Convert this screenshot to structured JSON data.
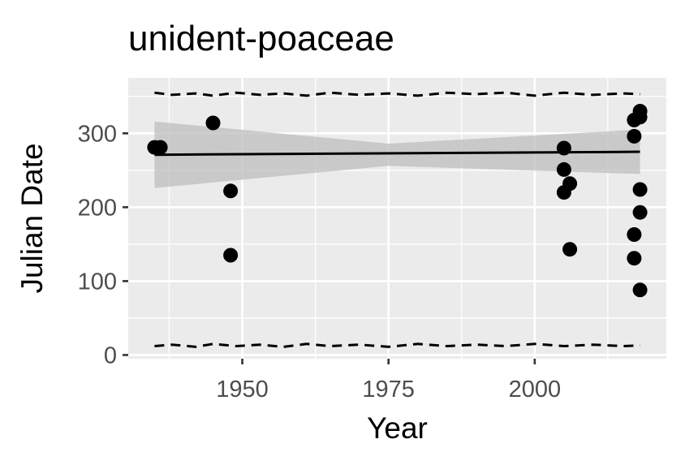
{
  "chart_data": {
    "type": "scatter",
    "title": "unident-poaceae",
    "xlabel": "Year",
    "ylabel": "Julian Date",
    "xlim": [
      1930.5,
      2022.5
    ],
    "ylim": [
      -5,
      375
    ],
    "x_ticks": [
      1950,
      1975,
      2000
    ],
    "y_ticks": [
      0,
      100,
      200,
      300
    ],
    "grid": true,
    "panel_background": "#ebebeb",
    "grid_color": "#ffffff",
    "point_color": "#000000",
    "ribbon_color": "#bebebe",
    "points": [
      {
        "x": 1935,
        "y": 281
      },
      {
        "x": 1936,
        "y": 281
      },
      {
        "x": 1945,
        "y": 314
      },
      {
        "x": 1948,
        "y": 222
      },
      {
        "x": 1948,
        "y": 135
      },
      {
        "x": 2005,
        "y": 280
      },
      {
        "x": 2005,
        "y": 251
      },
      {
        "x": 2005,
        "y": 220
      },
      {
        "x": 2006,
        "y": 232
      },
      {
        "x": 2006,
        "y": 143
      },
      {
        "x": 2017,
        "y": 318
      },
      {
        "x": 2017,
        "y": 296
      },
      {
        "x": 2017,
        "y": 163
      },
      {
        "x": 2017,
        "y": 131
      },
      {
        "x": 2018,
        "y": 330
      },
      {
        "x": 2018,
        "y": 322
      },
      {
        "x": 2018,
        "y": 224
      },
      {
        "x": 2018,
        "y": 193
      },
      {
        "x": 2018,
        "y": 88
      }
    ],
    "trend": {
      "x": [
        1935,
        2018
      ],
      "y": [
        271,
        275
      ]
    },
    "confidence_band": {
      "x": [
        1935,
        1975,
        2018
      ],
      "lower": [
        226,
        256,
        245
      ],
      "upper": [
        316,
        286,
        305
      ]
    },
    "upper_quantile": {
      "x": [
        1935,
        1938,
        1942,
        1945,
        1949,
        1953,
        1957,
        1961,
        1965,
        1970,
        1975,
        1980,
        1985,
        1990,
        1995,
        2000,
        2005,
        2010,
        2015,
        2018
      ],
      "y": [
        355,
        352,
        354,
        351,
        355,
        352,
        354,
        351,
        355,
        352,
        354,
        351,
        355,
        353,
        355,
        351,
        355,
        352,
        354,
        353
      ]
    },
    "lower_quantile": {
      "x": [
        1935,
        1938,
        1942,
        1945,
        1949,
        1953,
        1957,
        1961,
        1965,
        1970,
        1975,
        1980,
        1985,
        1990,
        1995,
        2000,
        2005,
        2010,
        2015,
        2018
      ],
      "y": [
        12,
        14,
        11,
        15,
        12,
        14,
        11,
        15,
        12,
        14,
        11,
        15,
        12,
        14,
        12,
        15,
        12,
        14,
        12,
        13
      ]
    }
  }
}
